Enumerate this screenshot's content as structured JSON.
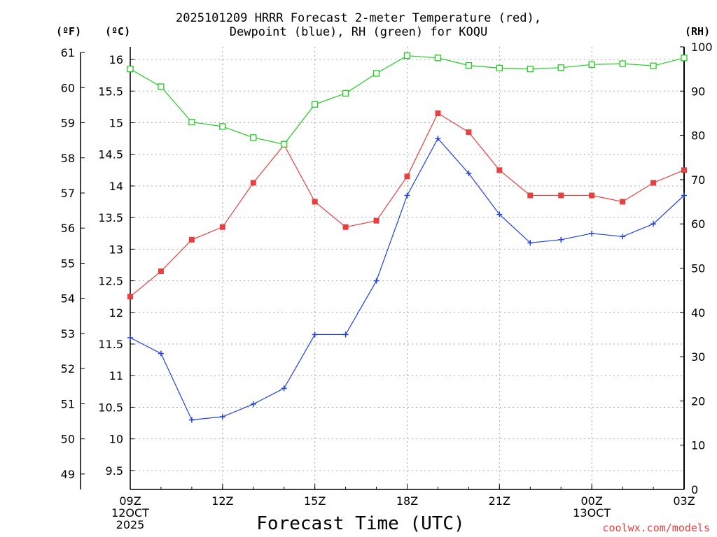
{
  "chart_data": {
    "type": "line",
    "title_line1": "2025101209 HRRR Forecast 2-meter Temperature (red),",
    "title_line2": "Dewpoint (blue), RH (green) for KOQU",
    "xlabel": "Forecast Time (UTC)",
    "y_left_outer_label": "(ºF)",
    "y_left_inner_label": "(ºC)",
    "y_right_label": "(RH)",
    "credit": "coolwx.com/models",
    "x_hours": [
      9,
      10,
      11,
      12,
      13,
      14,
      15,
      16,
      17,
      18,
      19,
      20,
      21,
      22,
      23,
      24,
      25,
      26,
      27
    ],
    "x_ticks": [
      {
        "hour": 9,
        "lines": [
          "09Z",
          "12OCT",
          "2025"
        ]
      },
      {
        "hour": 12,
        "lines": [
          "12Z"
        ]
      },
      {
        "hour": 15,
        "lines": [
          "15Z"
        ]
      },
      {
        "hour": 18,
        "lines": [
          "18Z"
        ]
      },
      {
        "hour": 21,
        "lines": [
          "21Z"
        ]
      },
      {
        "hour": 24,
        "lines": [
          "00Z",
          "13OCT"
        ]
      },
      {
        "hour": 27,
        "lines": [
          "03Z"
        ]
      }
    ],
    "ylim_c": [
      9.2,
      16.2
    ],
    "ylim_rh": [
      0,
      100
    ],
    "celsius_ticks": [
      "9.5",
      "10",
      "10.5",
      "11",
      "11.5",
      "12",
      "12.5",
      "13",
      "13.5",
      "14",
      "14.5",
      "15",
      "15.5",
      "16"
    ],
    "fahrenheit_ticks": [
      "49",
      "50",
      "51",
      "52",
      "53",
      "54",
      "55",
      "56",
      "57",
      "58",
      "59",
      "60",
      "61"
    ],
    "rh_ticks": [
      "0",
      "10",
      "20",
      "30",
      "40",
      "50",
      "60",
      "70",
      "80",
      "90",
      "100"
    ],
    "grid": true,
    "series": [
      {
        "name": "Temperature",
        "unit": "C",
        "color": "#e84040",
        "marker": "filled-square",
        "values": [
          12.25,
          12.65,
          13.15,
          13.35,
          14.05,
          14.65,
          13.75,
          13.35,
          13.45,
          14.15,
          15.15,
          14.85,
          14.25,
          13.85,
          13.85,
          13.85,
          13.75,
          14.05,
          14.25
        ]
      },
      {
        "name": "Dewpoint",
        "unit": "C",
        "color": "#2040e0",
        "marker": "plus",
        "values": [
          11.6,
          11.35,
          10.3,
          10.35,
          10.55,
          10.8,
          11.65,
          11.65,
          12.5,
          13.85,
          14.75,
          14.2,
          13.55,
          13.1,
          13.15,
          13.25,
          13.2,
          13.4,
          13.85
        ]
      },
      {
        "name": "RH",
        "unit": "%",
        "color": "#20cc20",
        "marker": "open-square",
        "values": [
          95,
          91,
          83,
          82,
          79.5,
          78,
          87,
          89.5,
          94,
          98,
          97.5,
          95.8,
          95.2,
          95,
          95.3,
          96,
          96.2,
          95.7,
          97.5
        ]
      }
    ]
  }
}
